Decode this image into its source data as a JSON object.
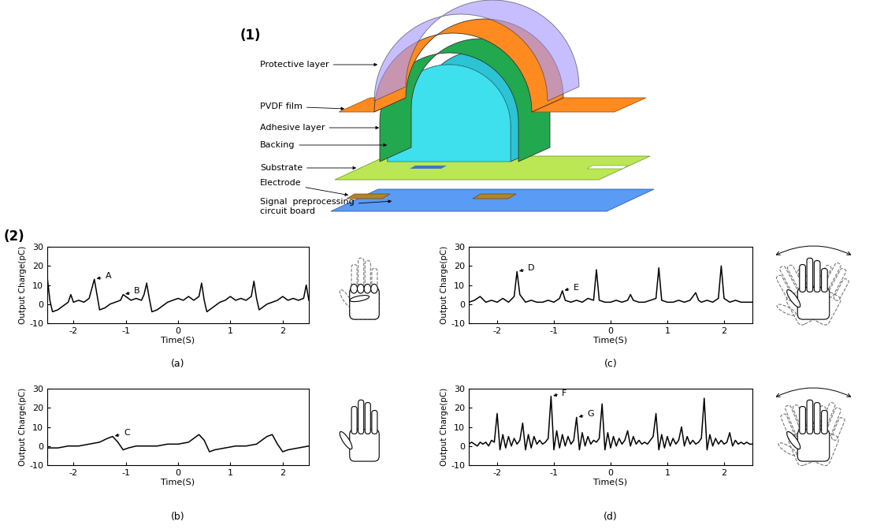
{
  "diagram": {
    "panel_label": "(1)",
    "labels": [
      "Protective layer",
      "PVDF film",
      "Adhesive layer",
      "Backing",
      "Substrate",
      "Electrode",
      "Signal  preprocessing\ncircuit board"
    ]
  },
  "charts_label": "(2)",
  "chart_data": [
    {
      "type": "line",
      "caption": "(a)",
      "xlabel": "Time(S)",
      "ylabel": "Output Charge(pC)",
      "color": "#000000",
      "xlim": [
        -2.5,
        2.5
      ],
      "ylim": [
        -10,
        30
      ],
      "xticks": [
        -2,
        -1,
        0,
        1,
        2
      ],
      "yticks": [
        -10,
        0,
        10,
        20,
        30
      ],
      "x": [
        -2.5,
        -2.45,
        -2.4,
        -2.3,
        -2.2,
        -2.1,
        -2.05,
        -2.0,
        -1.9,
        -1.8,
        -1.7,
        -1.65,
        -1.6,
        -1.55,
        -1.5,
        -1.4,
        -1.3,
        -1.2,
        -1.1,
        -1.05,
        -1.0,
        -0.9,
        -0.8,
        -0.7,
        -0.65,
        -0.6,
        -0.55,
        -0.5,
        -0.4,
        -0.3,
        -0.2,
        -0.1,
        0.0,
        0.1,
        0.2,
        0.3,
        0.4,
        0.45,
        0.5,
        0.55,
        0.6,
        0.7,
        0.8,
        0.9,
        1.0,
        1.1,
        1.2,
        1.3,
        1.4,
        1.45,
        1.5,
        1.55,
        1.6,
        1.7,
        1.8,
        1.9,
        2.0,
        2.1,
        2.2,
        2.3,
        2.4,
        2.45,
        2.5
      ],
      "values": [
        14,
        2,
        -4,
        -3,
        -1,
        1,
        5,
        1,
        2,
        1,
        3,
        8,
        13,
        5,
        -3,
        -2,
        0,
        1,
        2,
        5,
        4,
        2,
        3,
        2,
        5,
        11,
        3,
        -4,
        -3,
        -1,
        1,
        2,
        3,
        2,
        4,
        2,
        4,
        11,
        2,
        -4,
        -3,
        -1,
        1,
        2,
        4,
        2,
        3,
        2,
        4,
        12,
        3,
        -3,
        -2,
        0,
        1,
        2,
        4,
        2,
        3,
        2,
        3,
        10,
        2
      ],
      "annotations": [
        {
          "text": "A",
          "x": -1.6,
          "y": 13
        },
        {
          "text": "B",
          "x": -1.05,
          "y": 5
        }
      ]
    },
    {
      "type": "line",
      "caption": "(b)",
      "xlabel": "Time(S)",
      "ylabel": "Output Charge(pC)",
      "color": "#000000",
      "xlim": [
        -2.5,
        2.5
      ],
      "ylim": [
        -10,
        30
      ],
      "xticks": [
        -2,
        -1,
        0,
        1,
        2
      ],
      "yticks": [
        -10,
        0,
        10,
        20,
        30
      ],
      "x": [
        -2.5,
        -2.3,
        -2.1,
        -1.9,
        -1.7,
        -1.5,
        -1.35,
        -1.25,
        -1.15,
        -1.05,
        -0.95,
        -0.8,
        -0.6,
        -0.4,
        -0.2,
        0.0,
        0.2,
        0.3,
        0.4,
        0.5,
        0.6,
        0.7,
        0.9,
        1.1,
        1.3,
        1.5,
        1.6,
        1.7,
        1.8,
        1.9,
        2.0,
        2.1,
        2.3,
        2.5
      ],
      "values": [
        -1,
        -1,
        0,
        0,
        1,
        2,
        4,
        5,
        2,
        -2,
        -1,
        0,
        0,
        0,
        1,
        1,
        2,
        4,
        6,
        3,
        -3,
        -2,
        -1,
        0,
        0,
        1,
        3,
        5,
        6,
        1,
        -3,
        -2,
        -1,
        0
      ],
      "annotations": [
        {
          "text": "C",
          "x": -1.25,
          "y": 5
        }
      ]
    },
    {
      "type": "line",
      "caption": "(c)",
      "xlabel": "Time(S)",
      "ylabel": "Output Charge(pC)",
      "color": "#000000",
      "xlim": [
        -2.5,
        2.5
      ],
      "ylim": [
        -10,
        30
      ],
      "xticks": [
        -2,
        -1,
        0,
        1,
        2
      ],
      "yticks": [
        -10,
        0,
        10,
        20,
        30
      ],
      "x": [
        -2.5,
        -2.4,
        -2.3,
        -2.2,
        -2.1,
        -2.0,
        -1.9,
        -1.8,
        -1.7,
        -1.65,
        -1.6,
        -1.5,
        -1.4,
        -1.3,
        -1.2,
        -1.1,
        -1.0,
        -0.9,
        -0.85,
        -0.8,
        -0.7,
        -0.6,
        -0.5,
        -0.4,
        -0.3,
        -0.25,
        -0.2,
        -0.1,
        0.0,
        0.1,
        0.2,
        0.3,
        0.35,
        0.4,
        0.5,
        0.6,
        0.7,
        0.8,
        0.85,
        0.9,
        1.0,
        1.1,
        1.2,
        1.3,
        1.4,
        1.5,
        1.55,
        1.6,
        1.7,
        1.8,
        1.9,
        1.95,
        2.0,
        2.1,
        2.2,
        2.3,
        2.4,
        2.5
      ],
      "values": [
        1,
        2,
        4,
        1,
        2,
        1,
        3,
        1,
        4,
        17,
        5,
        1,
        2,
        1,
        1,
        2,
        1,
        3,
        7,
        2,
        1,
        2,
        1,
        3,
        2,
        18,
        2,
        1,
        1,
        2,
        1,
        2,
        5,
        2,
        1,
        1,
        2,
        3,
        19,
        2,
        1,
        1,
        2,
        1,
        2,
        6,
        2,
        1,
        2,
        1,
        3,
        20,
        3,
        1,
        2,
        1,
        1,
        1
      ],
      "annotations": [
        {
          "text": "D",
          "x": -1.65,
          "y": 17
        },
        {
          "text": "E",
          "x": -0.85,
          "y": 7
        }
      ]
    },
    {
      "type": "line",
      "caption": "(d)",
      "xlabel": "Time(S)",
      "ylabel": "Output Charge(pC)",
      "color": "#000000",
      "xlim": [
        -2.5,
        2.5
      ],
      "ylim": [
        -10,
        30
      ],
      "xticks": [
        -2,
        -1,
        0,
        1,
        2
      ],
      "yticks": [
        -10,
        0,
        10,
        20,
        30
      ],
      "x": [
        -2.5,
        -2.45,
        -2.4,
        -2.35,
        -2.3,
        -2.25,
        -2.2,
        -2.15,
        -2.1,
        -2.05,
        -2.0,
        -1.95,
        -1.9,
        -1.85,
        -1.8,
        -1.75,
        -1.7,
        -1.65,
        -1.6,
        -1.55,
        -1.5,
        -1.45,
        -1.4,
        -1.35,
        -1.3,
        -1.25,
        -1.2,
        -1.15,
        -1.1,
        -1.05,
        -1.0,
        -0.95,
        -0.9,
        -0.85,
        -0.8,
        -0.75,
        -0.7,
        -0.65,
        -0.6,
        -0.55,
        -0.5,
        -0.45,
        -0.4,
        -0.35,
        -0.3,
        -0.25,
        -0.2,
        -0.15,
        -0.1,
        -0.05,
        0.0,
        0.05,
        0.1,
        0.15,
        0.2,
        0.25,
        0.3,
        0.35,
        0.4,
        0.45,
        0.5,
        0.55,
        0.6,
        0.65,
        0.7,
        0.75,
        0.8,
        0.85,
        0.9,
        0.95,
        1.0,
        1.05,
        1.1,
        1.15,
        1.2,
        1.25,
        1.3,
        1.35,
        1.4,
        1.45,
        1.5,
        1.55,
        1.6,
        1.65,
        1.7,
        1.75,
        1.8,
        1.85,
        1.9,
        1.95,
        2.0,
        2.05,
        2.1,
        2.15,
        2.2,
        2.25,
        2.3,
        2.35,
        2.4,
        2.45,
        2.5
      ],
      "values": [
        1,
        2,
        1,
        0,
        2,
        1,
        2,
        0,
        3,
        2,
        17,
        -2,
        6,
        -1,
        5,
        0,
        4,
        1,
        3,
        12,
        -2,
        6,
        -1,
        5,
        1,
        3,
        1,
        2,
        4,
        26,
        -2,
        8,
        -1,
        6,
        0,
        5,
        1,
        3,
        15,
        -2,
        7,
        0,
        5,
        1,
        3,
        2,
        4,
        22,
        -2,
        7,
        -1,
        5,
        0,
        4,
        1,
        3,
        8,
        0,
        5,
        1,
        3,
        1,
        2,
        1,
        3,
        5,
        17,
        -2,
        6,
        -1,
        5,
        0,
        4,
        1,
        3,
        10,
        0,
        5,
        1,
        3,
        1,
        2,
        4,
        25,
        -2,
        6,
        0,
        4,
        1,
        3,
        1,
        2,
        7,
        0,
        3,
        1,
        2,
        1,
        2,
        1,
        1
      ],
      "annotations": [
        {
          "text": "F",
          "x": -1.05,
          "y": 26
        },
        {
          "text": "G",
          "x": -0.6,
          "y": 15
        }
      ]
    }
  ]
}
